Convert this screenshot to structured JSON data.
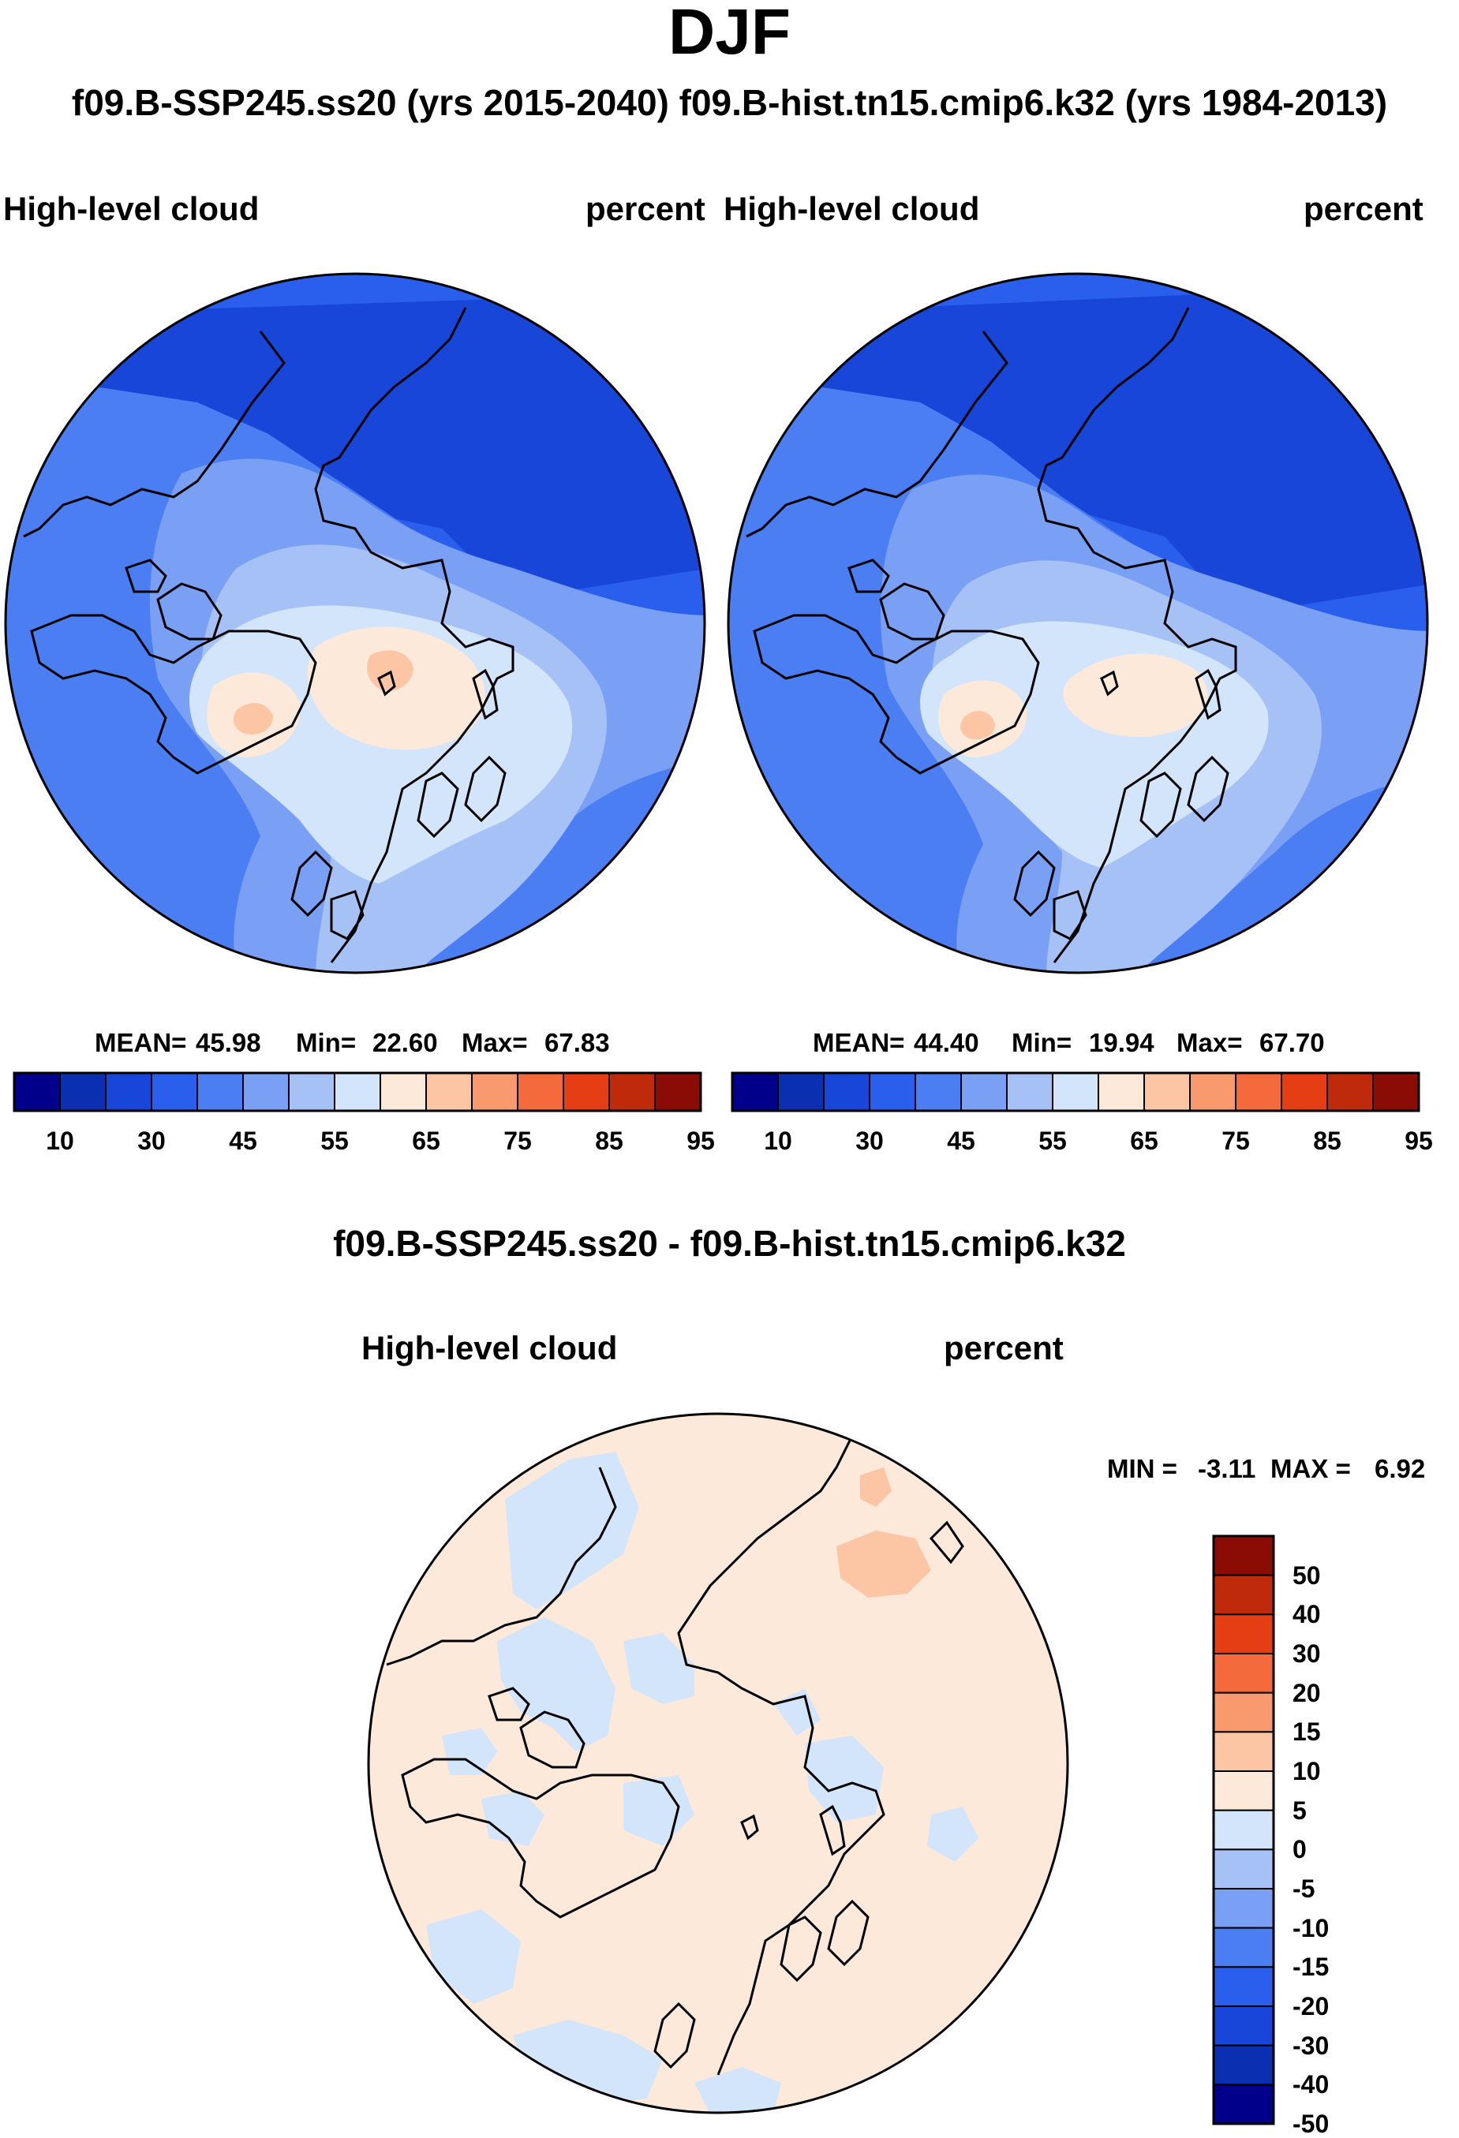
{
  "title": "DJF",
  "subtitle": "f09.B-SSP245.ss20 (yrs 2015-2040)  f09.B-hist.tn15.cmip6.k32 (yrs 1984-2013)",
  "panels": [
    {
      "variable": "High-level cloud",
      "units": "percent",
      "stats": {
        "mean_label": "MEAN=",
        "mean": "45.98",
        "min_label": "Min=",
        "min": "22.60",
        "max_label": "Max=",
        "max": "67.83"
      }
    },
    {
      "variable": "High-level cloud",
      "units": "percent",
      "stats": {
        "mean_label": "MEAN=",
        "mean": "44.40",
        "min_label": "Min=",
        "min": "19.94",
        "max_label": "Max=",
        "max": "67.70"
      }
    }
  ],
  "abs_colorbar": {
    "colors": [
      "#00008b",
      "#0a2fb0",
      "#1746d8",
      "#2a5fee",
      "#4a7ef2",
      "#7aa0f5",
      "#a6c1f6",
      "#d2e5fb",
      "#fde9da",
      "#fcc5a4",
      "#f99a6e",
      "#f46a3c",
      "#e53e14",
      "#bf2a0a",
      "#8b0b05"
    ],
    "labels": [
      "10",
      "30",
      "45",
      "55",
      "65",
      "75",
      "85",
      "95"
    ]
  },
  "diff": {
    "title": "f09.B-SSP245.ss20 - f09.B-hist.tn15.cmip6.k32",
    "variable": "High-level cloud",
    "units": "percent",
    "min_label": "MIN =",
    "min": "-3.11",
    "max_label": "MAX =",
    "max": "6.92",
    "colorbar": {
      "colors_top_to_bottom": [
        "#8b0b05",
        "#bf2a0a",
        "#e53e14",
        "#f46a3c",
        "#f99a6e",
        "#fcc5a4",
        "#fde9da",
        "#d2e5fb",
        "#a6c1f6",
        "#7aa0f5",
        "#4a7ef2",
        "#2a5fee",
        "#1746d8",
        "#0a2fb0",
        "#00008b"
      ],
      "labels": [
        "50",
        "40",
        "30",
        "20",
        "15",
        "10",
        "5",
        "0",
        "-5",
        "-10",
        "-15",
        "-20",
        "-30",
        "-40",
        "-50"
      ]
    }
  }
}
